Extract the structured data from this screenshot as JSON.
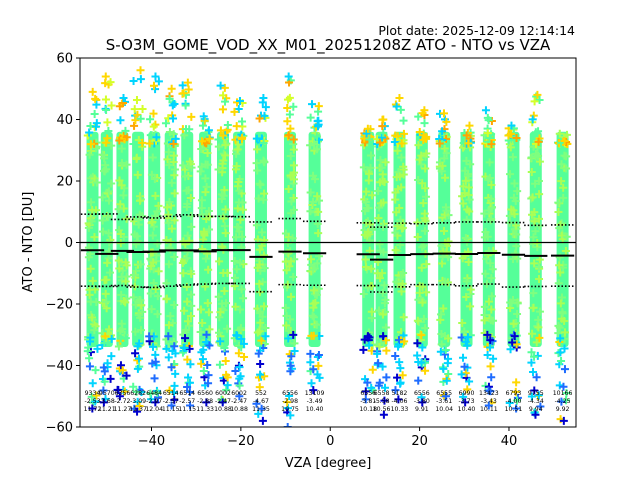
{
  "plot_date": "Plot date: 2025-12-09 12:14:14",
  "chart_data": {
    "type": "scatter",
    "title": "S-O3M_GOME_VOD_XX_M01_20251208Z ATO - NTO vs VZA",
    "xlabel": "VZA [degree]",
    "ylabel": "ATO - NTO [DU]",
    "xlim": [
      -56,
      55
    ],
    "ylim": [
      -60,
      60
    ],
    "xticks": [
      -40,
      -20,
      0,
      20,
      40
    ],
    "yticks": [
      -60,
      -40,
      -20,
      0,
      20,
      40,
      60
    ],
    "reference_line": 0,
    "bins": [
      {
        "center": -53.2,
        "count": "9334",
        "mean": "-2.53",
        "std": "11.72",
        "upper": 9.2,
        "lower": -14.2,
        "ymin": -54,
        "ymax": 49
      },
      {
        "center": -50.0,
        "count": "9570",
        "mean": "-3.68",
        "std": "11.21",
        "upper": 9.3,
        "lower": -14.3,
        "ymin": -52,
        "ymax": 54
      },
      {
        "center": -46.5,
        "count": "6356",
        "mean": "-2.72",
        "std": "11.27",
        "upper": 7.5,
        "lower": -14.0,
        "ymin": -50,
        "ymax": 47
      },
      {
        "center": -43.0,
        "count": "6282",
        "mean": "-3.09",
        "std": "11.37",
        "upper": 8.3,
        "lower": -14.5,
        "ymin": -55,
        "ymax": 56
      },
      {
        "center": -39.4,
        "count": "6484",
        "mean": "-2.97",
        "std": "12.04",
        "upper": 8.0,
        "lower": -14.6,
        "ymin": -52,
        "ymax": 54
      },
      {
        "center": -35.7,
        "count": "6514",
        "mean": "-2.57",
        "std": "11.15",
        "upper": 8.5,
        "lower": -14.2,
        "ymin": -53,
        "ymax": 50
      },
      {
        "center": -32.0,
        "count": "6514",
        "mean": "-2.57",
        "std": "11.15",
        "upper": 9.0,
        "lower": -13.8,
        "ymin": -53,
        "ymax": 52
      },
      {
        "center": -28.0,
        "count": "6560",
        "mean": "-2.88",
        "std": "11.33",
        "upper": 8.5,
        "lower": -13.5,
        "ymin": -52,
        "ymax": 41
      },
      {
        "center": -24.0,
        "count": "6002",
        "mean": "-2.47",
        "std": "10.88",
        "upper": 8.5,
        "lower": -13.3,
        "ymin": -52,
        "ymax": 51
      },
      {
        "center": -20.4,
        "count": "6002",
        "mean": "-2.47",
        "std": "10.88",
        "upper": 8.4,
        "lower": -13.3,
        "ymin": -50,
        "ymax": 46
      },
      {
        "center": -15.5,
        "count": "552",
        "mean": "-4.67",
        "std": "11.35",
        "upper": 6.7,
        "lower": -16.0,
        "ymin": -58,
        "ymax": 47
      },
      {
        "center": -9.0,
        "count": "6556",
        "mean": "-2.98",
        "std": "10.75",
        "upper": 7.8,
        "lower": -13.7,
        "ymin": -60,
        "ymax": 54
      },
      {
        "center": -3.5,
        "count": "13109",
        "mean": "-3.49",
        "std": "10.40",
        "upper": 6.9,
        "lower": -13.9,
        "ymin": -48,
        "ymax": 45
      },
      {
        "center": 8.5,
        "count": "6556",
        "mean": "-3.81",
        "std": "10.18",
        "upper": 6.4,
        "lower": -14.0,
        "ymin": -51,
        "ymax": 37
      },
      {
        "center": 11.5,
        "count": "6558",
        "mean": "-5.58",
        "std": "10.56",
        "upper": 5.0,
        "lower": -16.1,
        "ymin": -56,
        "ymax": 40
      },
      {
        "center": 15.5,
        "count": "5182",
        "mean": "-4.06",
        "std": "10.33",
        "upper": 6.3,
        "lower": -14.4,
        "ymin": -51,
        "ymax": 47
      },
      {
        "center": 20.5,
        "count": "6556",
        "mean": "-3.80",
        "std": "9.91",
        "upper": 6.1,
        "lower": -13.7,
        "ymin": -52,
        "ymax": 43
      },
      {
        "center": 25.5,
        "count": "6555",
        "mean": "-3.61",
        "std": "10.04",
        "upper": 6.4,
        "lower": -13.7,
        "ymin": -50,
        "ymax": 42
      },
      {
        "center": 30.5,
        "count": "6990",
        "mean": "-3.73",
        "std": "10.40",
        "upper": 6.7,
        "lower": -14.1,
        "ymin": -52,
        "ymax": 38
      },
      {
        "center": 35.5,
        "count": "13423",
        "mean": "-3.43",
        "std": "10.11",
        "upper": 6.7,
        "lower": -13.5,
        "ymin": -53,
        "ymax": 43
      },
      {
        "center": 41.0,
        "count": "6793",
        "mean": "-4.00",
        "std": "10.51",
        "upper": 6.5,
        "lower": -14.5,
        "ymin": -54,
        "ymax": 38
      },
      {
        "center": 46.0,
        "count": "9755",
        "mean": "-4.34",
        "std": "9.94",
        "upper": 5.6,
        "lower": -14.3,
        "ymin": -56,
        "ymax": 48
      },
      {
        "center": 52.0,
        "count": "10166",
        "mean": "-4.25",
        "std": "9.92",
        "upper": 5.7,
        "lower": -14.2,
        "ymin": -58,
        "ymax": 33
      }
    ],
    "colors": {
      "dense": "#55ff99",
      "mid": "#7fff7f",
      "light": "#aaff55",
      "cyan": "#00d4ff",
      "blue": "#1e6cff",
      "navy": "#0000cd",
      "yellow": "#ffd700",
      "orange": "#ffa500",
      "lime": "#d4ff2a"
    }
  }
}
